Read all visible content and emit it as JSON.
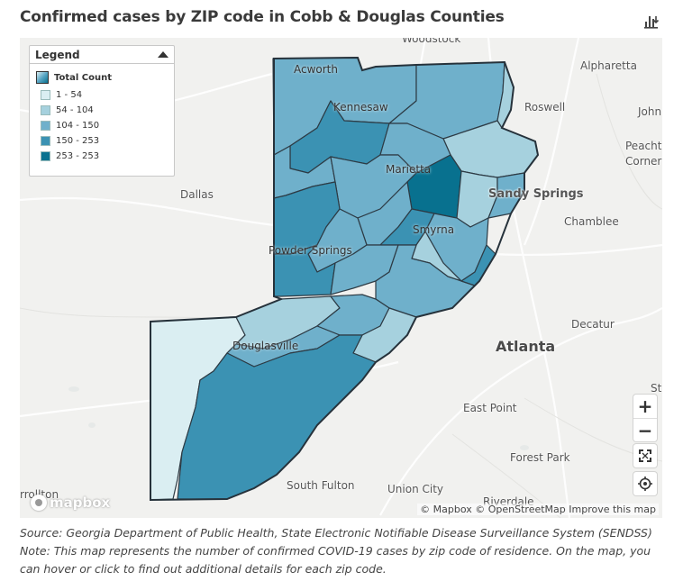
{
  "title": "Confirmed cases by ZIP code in Cobb & Douglas Counties",
  "download_icon": "bar-chart-download-icon",
  "legend": {
    "heading": "Legend",
    "subheading": "Total Count",
    "bins": [
      {
        "label": "1 - 54",
        "color": "#daeef2"
      },
      {
        "label": "54 - 104",
        "color": "#a6d1de"
      },
      {
        "label": "104 - 150",
        "color": "#6fb0cb"
      },
      {
        "label": "150 - 253",
        "color": "#3b92b3"
      },
      {
        "label": "253 - 253",
        "color": "#08718f"
      }
    ]
  },
  "places": {
    "woodstock": "Woodstock",
    "alpharetta": "Alpharetta",
    "roswell": "Roswell",
    "johns_creek": "John",
    "peachtree_corners_1": "Peachtr",
    "peachtree_corners_2": "Corner",
    "sandy_springs": "Sandy Springs",
    "chamblee": "Chamblee",
    "acworth": "Acworth",
    "kennesaw": "Kennesaw",
    "marietta": "Marietta",
    "smyrna": "Smyrna",
    "powder_springs": "Powder Springs",
    "dallas": "Dallas",
    "douglasville": "Douglasville",
    "atlanta": "Atlanta",
    "decatur": "Decatur",
    "east_point": "East Point",
    "forest_park": "Forest Park",
    "south_fulton": "South Fulton",
    "union_city": "Union City",
    "riverdale": "Riverdale",
    "carrollton": "rrollton",
    "stone_mountain": "St"
  },
  "controls": {
    "zoom_in": "+",
    "zoom_out": "−",
    "fullscreen_icon": "fullscreen-icon",
    "locate_icon": "geolocate-icon"
  },
  "attribution": {
    "mapbox": "© Mapbox",
    "osm": "© OpenStreetMap",
    "improve": "Improve this map",
    "logo": "mapbox"
  },
  "footnote": {
    "source": "Source: Georgia Department of Public Health, State Electronic Notifiable Disease Surveillance System (SENDSS)",
    "note": "Note: This map represents the number of confirmed COVID-19 cases by zip code of residence.  On the map, you can hover or click to find out additional details for each zip code."
  }
}
